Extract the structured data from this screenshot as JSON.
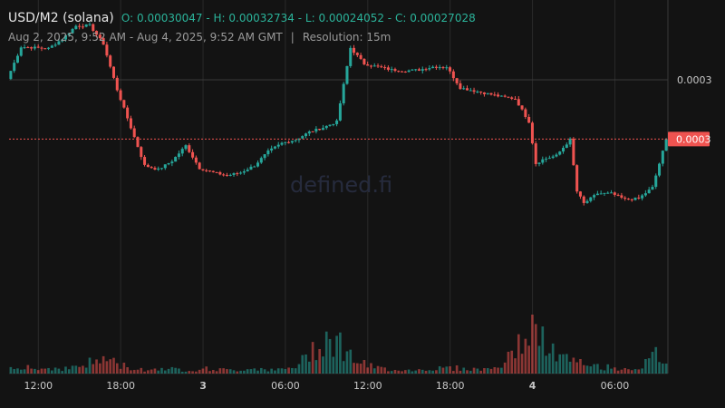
{
  "header": {
    "pair": "USD/M2 (solana)",
    "open": "O: 0.00030047",
    "high": "H: 0.00032734",
    "low": "L: 0.00024052",
    "close": "C: 0.00027028",
    "range": "Aug 2, 2025, 9:52 AM - Aug 4, 2025, 9:52 AM GMT",
    "separator": "|",
    "resolution": "Resolution: 15m"
  },
  "watermark": "defined.fi",
  "colors": {
    "up": "#26a69a",
    "down": "#ef5350",
    "background": "#131313",
    "grid": "#2a2a2a",
    "price_tag": "#ef5350"
  },
  "chart_data": {
    "type": "candlestick",
    "resolution_minutes": 15,
    "x_ticks": [
      {
        "label": "12:00",
        "hours": 2.133,
        "bold": false
      },
      {
        "label": "18:00",
        "hours": 8.133,
        "bold": false
      },
      {
        "label": "3",
        "hours": 14.133,
        "bold": true
      },
      {
        "label": "06:00",
        "hours": 20.133,
        "bold": false
      },
      {
        "label": "12:00",
        "hours": 26.133,
        "bold": false
      },
      {
        "label": "18:00",
        "hours": 32.133,
        "bold": false
      },
      {
        "label": "4",
        "hours": 38.133,
        "bold": true
      },
      {
        "label": "06:00",
        "hours": 44.133,
        "bold": false
      }
    ],
    "y_ticks": [
      {
        "label": "0.0003",
        "value": 0.0003
      }
    ],
    "last_price": {
      "label": "0.0003",
      "value": 0.00027028
    },
    "y_range": [
      0.00019,
      0.00034
    ],
    "volume_max": 60,
    "close_path": [
      [
        0,
        0.00030047
      ],
      [
        1,
        0.0003165
      ],
      [
        3,
        0.0003157
      ],
      [
        4,
        0.0003205
      ],
      [
        5,
        0.000327
      ],
      [
        6,
        0.0003273
      ],
      [
        7,
        0.000318
      ],
      [
        8,
        0.000295
      ],
      [
        9,
        0.000276
      ],
      [
        10,
        0.000257
      ],
      [
        11,
        0.000255
      ],
      [
        12,
        0.0002593
      ],
      [
        13,
        0.000267
      ],
      [
        14,
        0.0002557
      ],
      [
        15,
        0.0002535
      ],
      [
        16,
        0.000252
      ],
      [
        17,
        0.0002535
      ],
      [
        18,
        0.000257
      ],
      [
        19,
        0.000264
      ],
      [
        20,
        0.0002682
      ],
      [
        21,
        0.00027
      ],
      [
        22,
        0.0002738
      ],
      [
        23,
        0.000276
      ],
      [
        24,
        0.000279
      ],
      [
        25,
        0.000316
      ],
      [
        26,
        0.000308
      ],
      [
        28,
        0.000305
      ],
      [
        29,
        0.0003045
      ],
      [
        30,
        0.000305
      ],
      [
        31,
        0.0003065
      ],
      [
        32,
        0.0003065
      ],
      [
        33,
        0.000296
      ],
      [
        34,
        0.0002945
      ],
      [
        35,
        0.000293
      ],
      [
        36,
        0.0002915
      ],
      [
        37,
        0.0002905
      ],
      [
        38,
        0.000279
      ],
      [
        38.5,
        0.000258
      ],
      [
        39,
        0.00026
      ],
      [
        40,
        0.000262
      ],
      [
        41,
        0.00027
      ],
      [
        41.5,
        0.000244
      ],
      [
        42,
        0.000238
      ],
      [
        43,
        0.000243
      ],
      [
        44,
        0.000243
      ],
      [
        45,
        0.00024
      ],
      [
        46,
        0.0002405
      ],
      [
        47,
        0.000246
      ],
      [
        48,
        0.00027
      ],
      [
        49,
        0.000272
      ],
      [
        50,
        0.0002665
      ],
      [
        51,
        0.00027
      ],
      [
        52,
        0.000276
      ],
      [
        52.5,
        0.000296
      ],
      [
        53,
        0.000295
      ],
      [
        54,
        0.00029
      ],
      [
        55,
        0.000285
      ],
      [
        56,
        0.000274
      ],
      [
        57,
        0.000271
      ],
      [
        58,
        0.000275
      ],
      [
        59,
        0.0002765
      ],
      [
        59.4,
        0.000277
      ],
      [
        60,
        0.000272
      ]
    ],
    "volume_profile": [
      [
        0,
        8
      ],
      [
        1,
        10
      ],
      [
        2,
        5
      ],
      [
        3,
        7
      ],
      [
        4,
        6
      ],
      [
        5,
        9
      ],
      [
        6,
        14
      ],
      [
        7,
        18
      ],
      [
        8,
        10
      ],
      [
        9,
        6
      ],
      [
        10,
        4
      ],
      [
        11,
        7
      ],
      [
        12,
        5
      ],
      [
        13,
        4
      ],
      [
        14,
        6
      ],
      [
        15,
        5
      ],
      [
        16,
        4
      ],
      [
        17,
        5
      ],
      [
        18,
        7
      ],
      [
        19,
        4
      ],
      [
        20,
        5
      ],
      [
        21,
        10
      ],
      [
        22,
        30
      ],
      [
        23,
        45
      ],
      [
        24,
        35
      ],
      [
        25,
        18
      ],
      [
        26,
        9
      ],
      [
        27,
        6
      ],
      [
        28,
        5
      ],
      [
        29,
        4
      ],
      [
        30,
        5
      ],
      [
        31,
        6
      ],
      [
        32,
        7
      ],
      [
        33,
        6
      ],
      [
        34,
        5
      ],
      [
        35,
        6
      ],
      [
        36,
        12
      ],
      [
        37,
        35
      ],
      [
        38,
        55
      ],
      [
        39,
        32
      ],
      [
        40,
        20
      ],
      [
        41,
        14
      ],
      [
        42,
        10
      ],
      [
        43,
        8
      ],
      [
        44,
        7
      ],
      [
        45,
        6
      ],
      [
        46,
        8
      ],
      [
        47,
        22
      ],
      [
        48,
        12
      ],
      [
        49,
        15
      ],
      [
        50,
        26
      ],
      [
        51,
        18
      ],
      [
        52,
        10
      ],
      [
        53,
        7
      ],
      [
        54,
        6
      ],
      [
        55,
        5
      ],
      [
        56,
        6
      ],
      [
        57,
        5
      ],
      [
        58,
        8
      ],
      [
        59,
        5
      ],
      [
        60,
        6
      ]
    ]
  }
}
